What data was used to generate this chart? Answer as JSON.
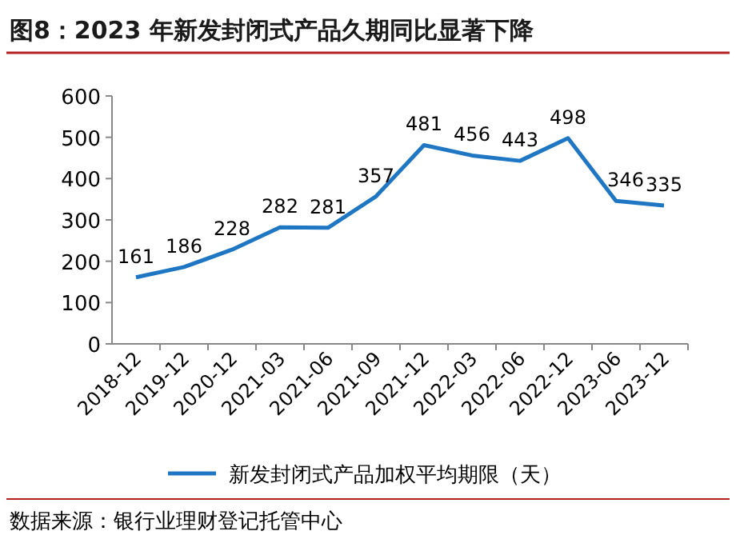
{
  "chart_data": {
    "type": "line",
    "title": "图8：2023 年新发封闭式产品久期同比显著下降",
    "categories": [
      "2018-12",
      "2019-12",
      "2020-12",
      "2021-03",
      "2021-06",
      "2021-09",
      "2021-12",
      "2022-03",
      "2022-06",
      "2022-12",
      "2023-06",
      "2023-12"
    ],
    "series": [
      {
        "name": "新发封闭式产品加权平均期限（天）",
        "color": "#1f77c4",
        "values": [
          161,
          186,
          228,
          282,
          281,
          357,
          481,
          456,
          443,
          498,
          346,
          335
        ]
      }
    ],
    "ylim": [
      0,
      600
    ],
    "yticks": [
      0,
      100,
      200,
      300,
      400,
      500,
      600
    ],
    "data_labels": true,
    "legend": "bottom",
    "grid": false,
    "marker": "none",
    "annotations": [
      "数据来源：银行业理财登记托管中心"
    ]
  }
}
